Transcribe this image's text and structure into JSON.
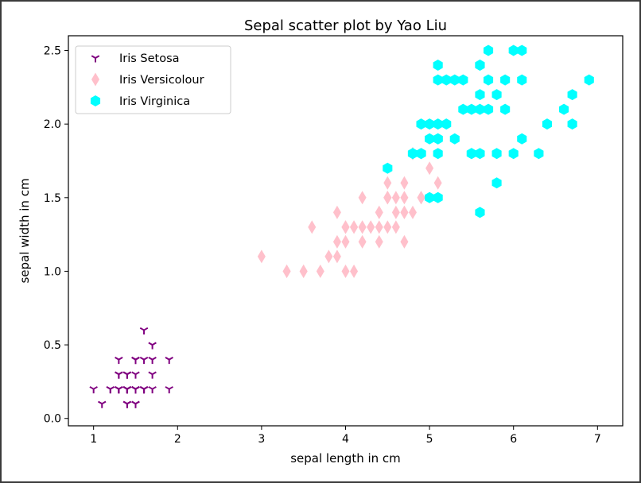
{
  "chart_data": {
    "type": "scatter",
    "title": "Sepal scatter plot by Yao Liu",
    "xlabel": "sepal length in cm",
    "ylabel": "sepal width in cm",
    "xlim": [
      0.7,
      7.3
    ],
    "ylim": [
      -0.05,
      2.6
    ],
    "xticks": [
      1,
      2,
      3,
      4,
      5,
      6,
      7
    ],
    "xtick_labels": [
      "1",
      "2",
      "3",
      "4",
      "5",
      "6",
      "7"
    ],
    "yticks": [
      0.0,
      0.5,
      1.0,
      1.5,
      2.0,
      2.5
    ],
    "ytick_labels": [
      "0.0",
      "0.5",
      "1.0",
      "1.5",
      "2.0",
      "2.5"
    ],
    "grid": false,
    "legend_position": "top-left",
    "series": [
      {
        "name": "Iris Setosa",
        "marker": "tri-down",
        "color": "#800080",
        "x": [
          1.4,
          1.4,
          1.3,
          1.5,
          1.4,
          1.7,
          1.4,
          1.5,
          1.4,
          1.5,
          1.5,
          1.6,
          1.4,
          1.1,
          1.2,
          1.5,
          1.3,
          1.4,
          1.7,
          1.5,
          1.7,
          1.5,
          1.0,
          1.7,
          1.9,
          1.6,
          1.6,
          1.5,
          1.4,
          1.6,
          1.6,
          1.5,
          1.5,
          1.4,
          1.5,
          1.2,
          1.3,
          1.4,
          1.3,
          1.5,
          1.3,
          1.3,
          1.3,
          1.6,
          1.9,
          1.4,
          1.6,
          1.4,
          1.5,
          1.4
        ],
        "y": [
          0.2,
          0.2,
          0.2,
          0.2,
          0.2,
          0.4,
          0.3,
          0.2,
          0.2,
          0.1,
          0.2,
          0.2,
          0.1,
          0.1,
          0.2,
          0.4,
          0.4,
          0.3,
          0.3,
          0.3,
          0.2,
          0.4,
          0.2,
          0.5,
          0.2,
          0.2,
          0.4,
          0.2,
          0.2,
          0.2,
          0.2,
          0.4,
          0.1,
          0.2,
          0.2,
          0.2,
          0.2,
          0.1,
          0.2,
          0.2,
          0.3,
          0.3,
          0.2,
          0.6,
          0.4,
          0.3,
          0.2,
          0.2,
          0.2,
          0.2
        ]
      },
      {
        "name": "Iris Versicolour",
        "marker": "thin-diamond",
        "color": "#ffc0cb",
        "x": [
          4.7,
          4.5,
          4.9,
          4.0,
          4.6,
          4.5,
          4.7,
          3.3,
          4.6,
          3.9,
          3.5,
          4.2,
          4.0,
          4.7,
          3.6,
          4.4,
          4.5,
          4.1,
          4.5,
          3.9,
          4.8,
          4.0,
          4.9,
          4.7,
          4.3,
          4.4,
          4.8,
          5.0,
          4.5,
          3.5,
          3.8,
          3.7,
          3.9,
          5.1,
          4.5,
          4.5,
          4.7,
          4.4,
          4.1,
          4.0,
          4.4,
          4.6,
          4.0,
          3.3,
          4.2,
          4.2,
          4.2,
          4.3,
          3.0,
          4.1
        ],
        "y": [
          1.4,
          1.5,
          1.5,
          1.3,
          1.5,
          1.3,
          1.6,
          1.0,
          1.3,
          1.4,
          1.0,
          1.5,
          1.0,
          1.4,
          1.3,
          1.4,
          1.5,
          1.0,
          1.5,
          1.1,
          1.8,
          1.3,
          1.5,
          1.2,
          1.3,
          1.4,
          1.4,
          1.7,
          1.5,
          1.0,
          1.1,
          1.0,
          1.2,
          1.6,
          1.5,
          1.6,
          1.5,
          1.3,
          1.3,
          1.3,
          1.2,
          1.4,
          1.2,
          1.0,
          1.3,
          1.2,
          1.3,
          1.3,
          1.1,
          1.3
        ]
      },
      {
        "name": "Iris Virginica",
        "marker": "hexagon",
        "color": "#00ffff",
        "x": [
          6.0,
          5.1,
          5.9,
          5.6,
          5.8,
          6.6,
          4.5,
          6.3,
          5.8,
          6.1,
          5.1,
          5.3,
          5.5,
          5.0,
          5.1,
          5.3,
          5.5,
          6.7,
          6.9,
          5.0,
          5.7,
          4.9,
          6.7,
          4.9,
          5.7,
          6.0,
          4.8,
          4.9,
          5.6,
          5.8,
          6.1,
          6.4,
          5.6,
          5.1,
          5.6,
          6.1,
          5.6,
          5.5,
          4.8,
          5.4,
          5.6,
          5.1,
          5.1,
          5.9,
          5.7,
          5.2,
          5.0,
          5.2,
          5.4,
          5.1
        ],
        "y": [
          2.5,
          1.9,
          2.1,
          1.8,
          2.2,
          2.1,
          1.7,
          1.8,
          1.8,
          2.5,
          2.0,
          1.9,
          2.1,
          2.0,
          2.4,
          2.3,
          1.8,
          2.2,
          2.3,
          1.5,
          2.3,
          2.0,
          2.0,
          1.8,
          2.1,
          1.8,
          1.8,
          1.8,
          2.1,
          1.6,
          1.9,
          2.0,
          2.2,
          1.5,
          1.4,
          2.3,
          2.4,
          1.8,
          1.8,
          2.1,
          2.4,
          2.3,
          1.9,
          2.3,
          2.5,
          2.3,
          1.9,
          2.0,
          2.3,
          1.8
        ]
      }
    ]
  }
}
